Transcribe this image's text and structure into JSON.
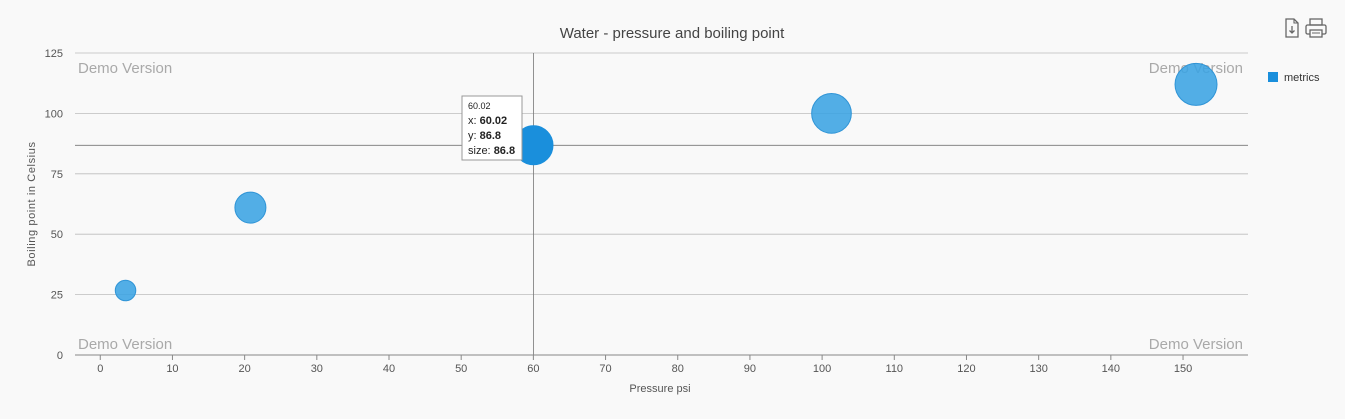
{
  "toolbar": {
    "export_icon": "export-document-icon",
    "print_icon": "printer-icon"
  },
  "watermark": "Demo Version",
  "tooltip": {
    "title": "60.02",
    "x_label": "x: ",
    "x_value": "60.02",
    "y_label": "y: ",
    "y_value": "86.8",
    "size_label": "size: ",
    "size_value": "86.8"
  },
  "colors": {
    "bubble": "#3aa3e3",
    "bubble_active": "#1a8fdc",
    "legend_marker": "#1a8fdc",
    "grid": "#bdbdbd",
    "text": "#555555"
  },
  "chart_data": {
    "type": "scatter",
    "title": "Water - pressure and boiling point",
    "xlabel": "Pressure psi",
    "ylabel": "Boiling point in Celsius",
    "xlim": [
      -3.5,
      159
    ],
    "ylim": [
      0,
      125
    ],
    "xticks": [
      0,
      10,
      20,
      30,
      40,
      50,
      60,
      70,
      80,
      90,
      100,
      110,
      120,
      130,
      140,
      150
    ],
    "yticks": [
      0,
      25,
      50,
      75,
      100,
      125
    ],
    "grid": true,
    "legend": "right",
    "hover_index": 2,
    "crosshair": {
      "x": 60.02,
      "y": 86.8
    },
    "series": [
      {
        "name": "metrics",
        "points": [
          {
            "x": 3.5,
            "y": 26.7,
            "size": 26.7
          },
          {
            "x": 20.8,
            "y": 61,
            "size": 61
          },
          {
            "x": 60.02,
            "y": 86.8,
            "size": 86.8
          },
          {
            "x": 101.3,
            "y": 100,
            "size": 100
          },
          {
            "x": 151.8,
            "y": 112,
            "size": 112
          }
        ]
      }
    ]
  }
}
